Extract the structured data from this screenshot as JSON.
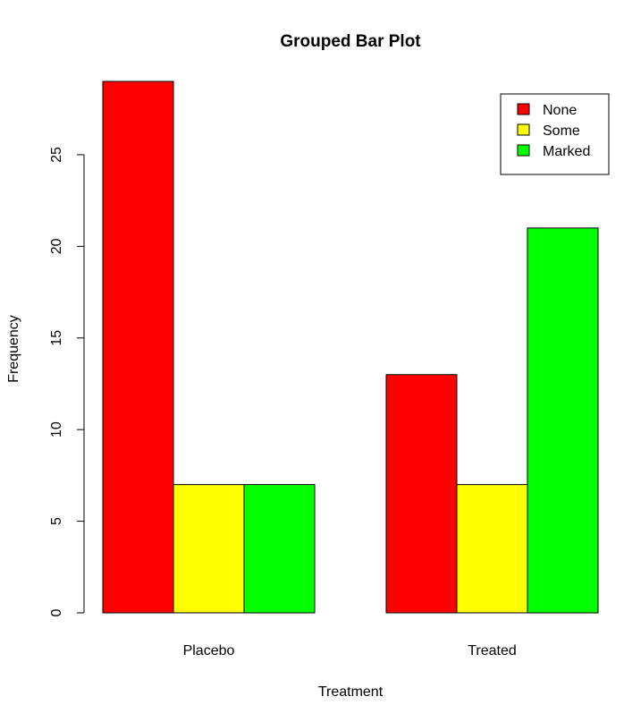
{
  "chart_data": {
    "type": "bar",
    "title": "Grouped Bar Plot",
    "xlabel": "Treatment",
    "ylabel": "Frequency",
    "categories": [
      "Placebo",
      "Treated"
    ],
    "series": [
      {
        "name": "None",
        "color": "#ff0000",
        "values": [
          29,
          13
        ]
      },
      {
        "name": "Some",
        "color": "#ffff00",
        "values": [
          7,
          7
        ]
      },
      {
        "name": "Marked",
        "color": "#00ff00",
        "values": [
          7,
          21
        ]
      }
    ],
    "ylim": [
      0,
      29
    ],
    "yticks": [
      "0",
      "5",
      "10",
      "15",
      "20",
      "25"
    ],
    "grid": false,
    "legend_position": "top-right"
  }
}
